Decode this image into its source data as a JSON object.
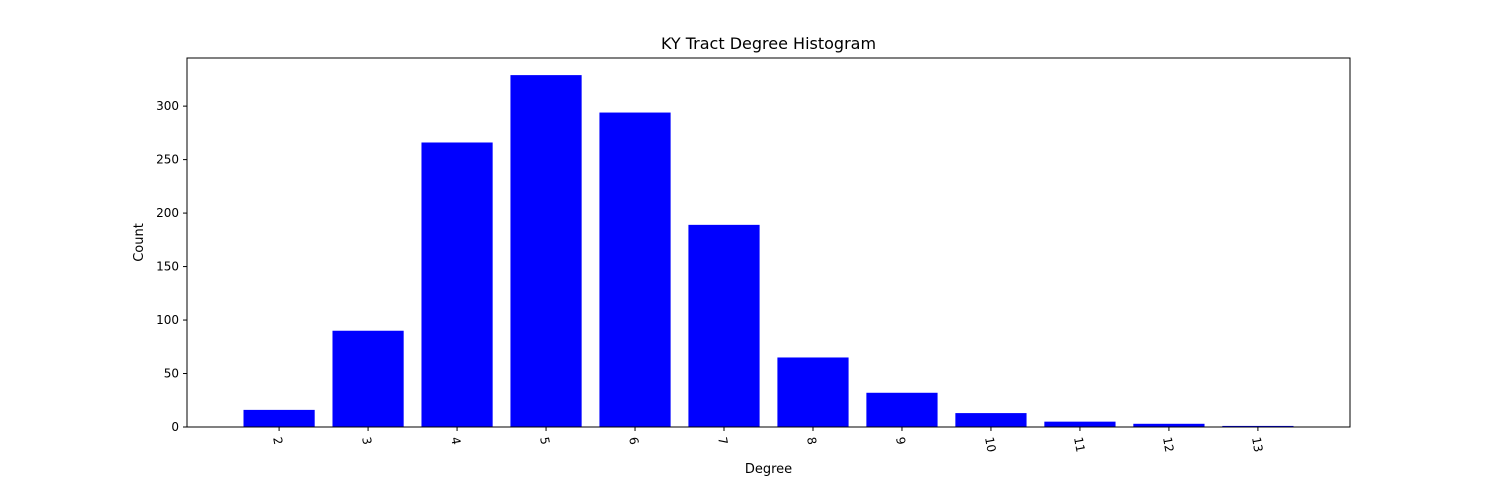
{
  "chart_data": {
    "type": "bar",
    "title": "KY Tract Degree Histogram",
    "xlabel": "Degree",
    "ylabel": "Count",
    "categories": [
      "2",
      "3",
      "4",
      "5",
      "6",
      "7",
      "8",
      "9",
      "10",
      "11",
      "12",
      "13"
    ],
    "values": [
      16,
      90,
      266,
      329,
      294,
      189,
      65,
      32,
      13,
      5,
      3,
      1
    ],
    "ylim": [
      0,
      345
    ],
    "yticks": [
      0,
      50,
      100,
      150,
      200,
      250,
      300
    ],
    "xtick_rotation": "rotated ~ -80° (vertical, reading downward)",
    "bar_color": "#0000ff",
    "grid": false,
    "legend": "none"
  }
}
